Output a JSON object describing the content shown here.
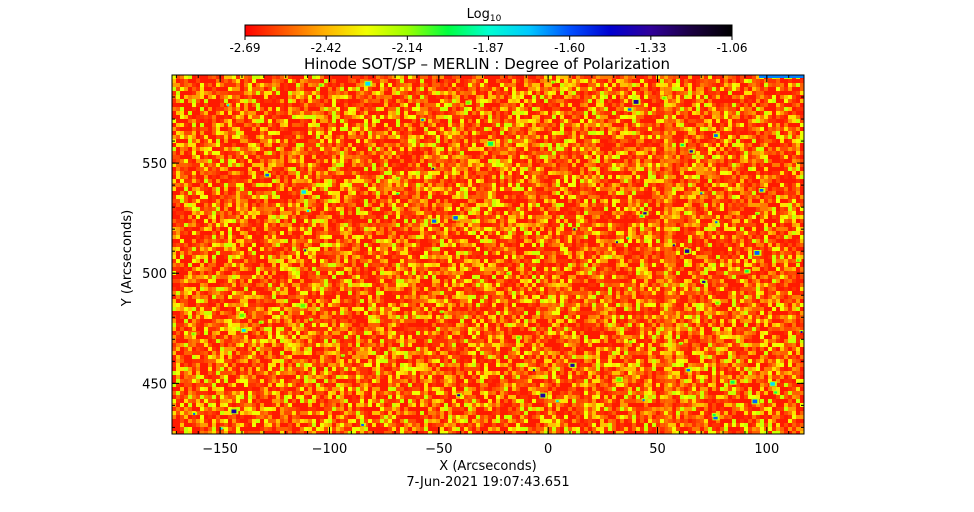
{
  "chart_data": {
    "type": "heatmap",
    "title": "Hinode SOT/SP – MERLIN : Degree of Polarization",
    "colorbar": {
      "label_main": "Log",
      "label_sub": "10",
      "ticks": [
        "-2.69",
        "-2.42",
        "-2.14",
        "-1.87",
        "-1.60",
        "-1.33",
        "-1.06"
      ],
      "range": [
        -2.69,
        -1.06
      ],
      "colors": [
        "#ff0000",
        "#ff5a00",
        "#ffb400",
        "#f0ff00",
        "#9bff00",
        "#00ff40",
        "#00ffd0",
        "#00c8ff",
        "#0050ff",
        "#0000d0",
        "#30009a",
        "#1a0040",
        "#000000"
      ]
    },
    "xlabel": "X (Arcseconds)",
    "ylabel": "Y (Arcseconds)",
    "xlim": [
      -172,
      117
    ],
    "ylim": [
      427,
      590
    ],
    "xticks": [
      -150,
      -100,
      -50,
      0,
      50,
      100
    ],
    "yticks": [
      450,
      500,
      550
    ],
    "timestamp": "7-Jun-2021 19:07:43.651"
  }
}
